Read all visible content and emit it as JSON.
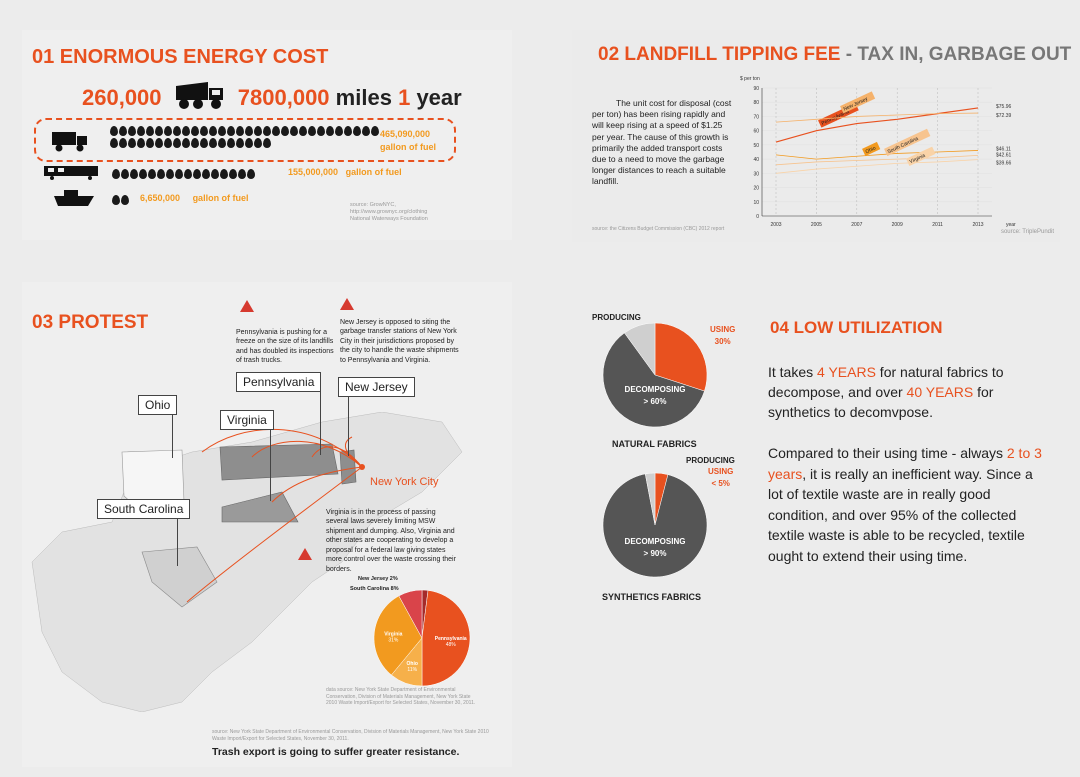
{
  "p1": {
    "title": "01 ENORMOUS ENERGY COST",
    "trucks": "260,000",
    "miles": "7800,000",
    "miles_unit": "miles",
    "year_num": "1",
    "year_word": "year",
    "truck_fuel": "465,090,000",
    "train_fuel": "155,000,000",
    "ship_fuel": "6,650,000",
    "gallon": "gallon of fuel",
    "source": "source: GrowNYC,\nhttp://www.grownyc.org/clothing\nNational Waterways Foundation"
  },
  "p2": {
    "title_a": "02 LANDFILL TIPPING FEE",
    "title_b": " - TAX IN, GARBAGE OUT",
    "text": "The unit cost for disposal (cost per ton) has been rising rapidly and will keep rising at a speed of $1.25 per year. The cause of this growth is primarily the added transport costs due to a need to move the garbage longer distances to reach a suitable landfill.",
    "source": "source: the Citizens Budget Commission (CBC) 2012 report",
    "credit": "source: TriplePundit"
  },
  "chart_data": {
    "type": "line",
    "ylabel": "$ per ton",
    "xlabel": "year",
    "x": [
      "2003",
      "2005",
      "2007",
      "2009",
      "2011",
      "2013"
    ],
    "yticks": [
      0,
      10,
      20,
      30,
      40,
      50,
      60,
      70,
      80,
      90
    ],
    "ylim": [
      0,
      90
    ],
    "series": [
      {
        "name": "Pennsylvania",
        "values": [
          52,
          60,
          65,
          68,
          72,
          75.96
        ],
        "color": "#e8511f"
      },
      {
        "name": "New Jersey",
        "values": [
          66,
          68,
          70,
          71,
          72,
          72.39
        ],
        "color": "#f5b26b"
      },
      {
        "name": "Ohio",
        "values": [
          43,
          40,
          42,
          44,
          45,
          46.11
        ],
        "color": "#f29a1f"
      },
      {
        "name": "South Carolina",
        "values": [
          36,
          38,
          39,
          40,
          41,
          42.61
        ],
        "color": "#f7c48f"
      },
      {
        "name": "Virginia",
        "values": [
          30,
          33,
          35,
          37,
          38,
          39.66
        ],
        "color": "#f9d3a8"
      }
    ],
    "end_labels": [
      "$75.96",
      "$72.39",
      "$46.11",
      "$42.61",
      "$39.66"
    ]
  },
  "p3": {
    "title": "03 PROTEST",
    "states": [
      "Ohio",
      "Pennsylvania",
      "New Jersey",
      "Virginia",
      "South Carolina"
    ],
    "city": "New York City",
    "note_pa": "Pennsylvania is pushing for a freeze on the size of its landfills and has doubled its inspections of trash trucks.",
    "note_nj": "New Jersey is opposed to siting the garbage transfer stations of New York City in their jurisdictions proposed by the city to handle the waste shipments to Pennsylvania and Virginia.",
    "note_va": "Virginia is in the process of passing several laws severely limiting MSW shipment and dumping. Also, Virginia and other states are cooperating to develop a proposal for a federal law giving states more control over the waste crossing their borders.",
    "pie": [
      {
        "label": "Pennsylvania",
        "pct": "48%",
        "value": 48,
        "color": "#e8511f"
      },
      {
        "label": "Ohio",
        "pct": "11%",
        "value": 11,
        "color": "#f6b04a"
      },
      {
        "label": "Virginia",
        "pct": "31%",
        "value": 31,
        "color": "#f29a1f"
      },
      {
        "label": "South Carolina",
        "pct": "8%",
        "value": 8,
        "color": "#d9444a"
      },
      {
        "label": "New Jersey",
        "pct": "2%",
        "value": 2,
        "color": "#a52a2a"
      }
    ],
    "pie_lbl_nj": "New Jersey  2%",
    "pie_lbl_sc": "South Carolina  8%",
    "data_source": "data source: New York State Department of Environmental Conservation, Division of Materials Management, New York State 2010 Waste Import/Export for Selected States, November 30, 2011.",
    "source": "source: New York State Department of Environmental Conservation, Division of Materials Management, New York State 2010 Waste Import/Export for Selected States, November 30, 2011.",
    "conclusion": "Trash export is going to suffer greater resistance."
  },
  "p4": {
    "title": "04 LOW UTILIZATION",
    "natural": {
      "label": "NATURAL FABRICS",
      "producing": "PRODUCING",
      "using": "USING",
      "using_pct": "30%",
      "decomp": "DECOMPOSING",
      "decomp_pct": "> 60%"
    },
    "synthetic": {
      "label": "SYNTHETICS FABRICS",
      "producing": "PRODUCING",
      "using": "USING",
      "using_pct": "< 5%",
      "decomp": "DECOMPOSING",
      "decomp_pct": "> 90%"
    },
    "p1_a": "It takes ",
    "p1_b": "4 YEARS",
    "p1_c": " for natural fabrics to decompose, and over ",
    "p1_d": "40 YEARS",
    "p1_e": " for synthetics to decomvpose.",
    "p2_a": "Compared to their using time - always ",
    "p2_b": "2 to 3 years",
    "p2_c": ", it is really an inefficient way. Since a lot of textile waste are in really good condition, and over 95% of the collected textile waste is able to be recycled, textile ought to extend their using time."
  }
}
